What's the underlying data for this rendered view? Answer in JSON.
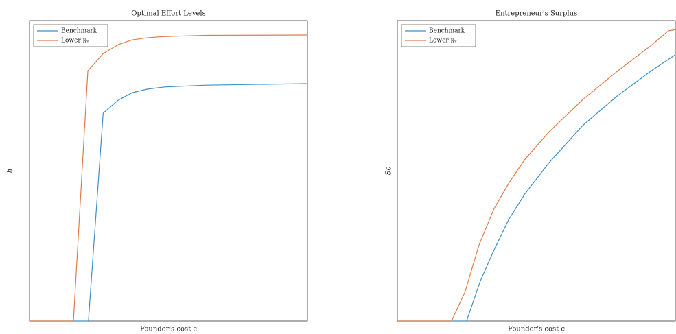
{
  "chart_data": [
    {
      "type": "line",
      "title": "Optimal Effort Levels",
      "xlabel": "Founder's cost c",
      "ylabel": "h",
      "xlim": [
        0,
        1
      ],
      "ylim": [
        0,
        1
      ],
      "legend": "upper left",
      "series": [
        {
          "name": "Benchmark",
          "color": "#3d8fc6",
          "x": [
            0,
            0.212,
            0.265,
            0.319,
            0.37,
            0.425,
            0.486,
            0.635,
            1
          ],
          "values": [
            0,
            0,
            0.692,
            0.735,
            0.76,
            0.772,
            0.779,
            0.785,
            0.79
          ]
        },
        {
          "name": "Lower κᵥ",
          "color": "#e07a4a",
          "x": [
            0,
            0.158,
            0.21,
            0.265,
            0.319,
            0.37,
            0.425,
            0.486,
            0.635,
            1
          ],
          "values": [
            0,
            0,
            0.833,
            0.89,
            0.92,
            0.936,
            0.943,
            0.947,
            0.951,
            0.952
          ]
        }
      ]
    },
    {
      "type": "line",
      "title": "Entrepreneur's Surplus",
      "xlabel": "Founder's cost c",
      "ylabel": "Sc",
      "xlim": [
        0,
        1
      ],
      "ylim": [
        0,
        1
      ],
      "legend": "upper left",
      "series": [
        {
          "name": "Benchmark",
          "color": "#3d8fc6",
          "x": [
            0,
            0.249,
            0.298,
            0.347,
            0.401,
            0.458,
            0.544,
            0.667,
            0.791,
            0.914,
            1
          ],
          "values": [
            0,
            0,
            0.132,
            0.235,
            0.338,
            0.422,
            0.525,
            0.651,
            0.749,
            0.833,
            0.886
          ]
        },
        {
          "name": "Lower κᵥ",
          "color": "#e07a4a",
          "x": [
            0,
            0.195,
            0.244,
            0.293,
            0.347,
            0.401,
            0.458,
            0.544,
            0.667,
            0.791,
            0.914,
            0.975,
            1
          ],
          "values": [
            0,
            0,
            0.098,
            0.251,
            0.372,
            0.459,
            0.537,
            0.628,
            0.737,
            0.831,
            0.918,
            0.966,
            0.97
          ]
        }
      ]
    }
  ]
}
